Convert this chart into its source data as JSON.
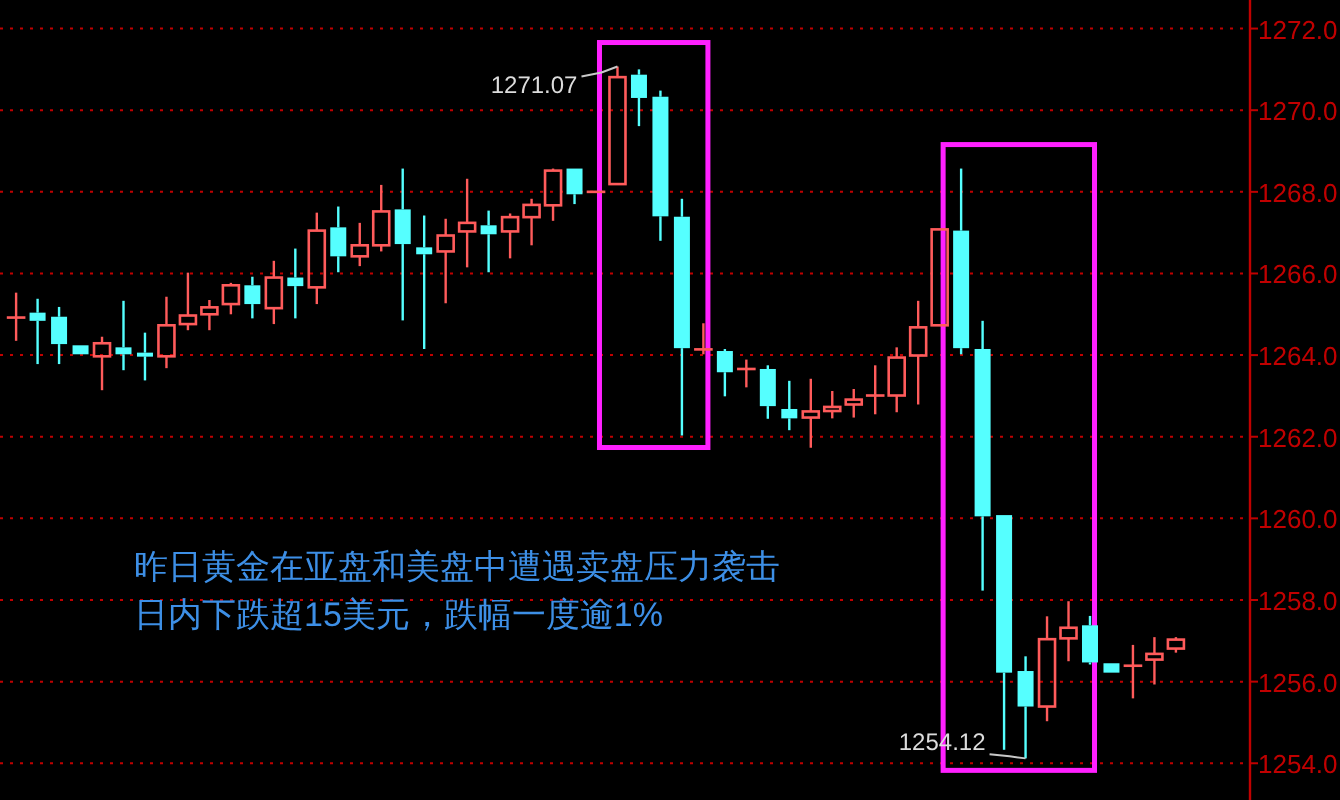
{
  "chart_data": {
    "type": "candlestick",
    "categories": [
      null,
      null,
      null,
      null,
      null,
      null,
      null,
      null,
      null,
      null,
      null,
      null,
      null,
      null,
      null,
      null,
      null,
      null,
      null,
      null,
      null,
      null,
      null,
      null,
      null,
      null,
      null,
      null,
      null,
      null,
      null,
      null,
      null,
      null,
      null,
      null,
      null,
      null,
      null,
      null,
      null,
      null,
      null,
      null,
      null,
      null,
      null,
      null,
      null,
      null,
      null,
      null,
      null,
      null,
      null
    ],
    "ohlc": [
      [
        1264.92,
        1265.53,
        1264.35,
        1264.92
      ],
      [
        1265.04,
        1265.38,
        1263.78,
        1264.84
      ],
      [
        1264.94,
        1265.18,
        1263.78,
        1264.27
      ],
      [
        1264.24,
        1264.24,
        1264.02,
        1264.02
      ],
      [
        1263.97,
        1264.45,
        1263.14,
        1264.29
      ],
      [
        1264.19,
        1265.33,
        1263.63,
        1264.02
      ],
      [
        1264.06,
        1264.55,
        1263.38,
        1263.97
      ],
      [
        1263.97,
        1265.43,
        1263.68,
        1264.73
      ],
      [
        1264.76,
        1266.02,
        1264.61,
        1264.97
      ],
      [
        1265.0,
        1265.35,
        1264.61,
        1265.17
      ],
      [
        1265.25,
        1265.77,
        1265.0,
        1265.71
      ],
      [
        1265.71,
        1265.92,
        1264.9,
        1265.25
      ],
      [
        1265.15,
        1266.31,
        1264.76,
        1265.9
      ],
      [
        1265.9,
        1266.61,
        1264.9,
        1265.69
      ],
      [
        1265.66,
        1267.49,
        1265.25,
        1267.05
      ],
      [
        1267.13,
        1267.64,
        1266.03,
        1266.42
      ],
      [
        1266.42,
        1267.24,
        1266.18,
        1266.69
      ],
      [
        1266.69,
        1268.17,
        1266.54,
        1267.52
      ],
      [
        1267.57,
        1268.57,
        1264.85,
        1266.72
      ],
      [
        1266.64,
        1267.42,
        1264.15,
        1266.47
      ],
      [
        1266.54,
        1267.34,
        1265.27,
        1266.93
      ],
      [
        1267.03,
        1268.32,
        1266.15,
        1267.24
      ],
      [
        1267.18,
        1267.54,
        1266.03,
        1266.96
      ],
      [
        1267.03,
        1267.47,
        1266.37,
        1267.38
      ],
      [
        1267.38,
        1267.83,
        1266.69,
        1267.68
      ],
      [
        1267.67,
        1268.57,
        1267.29,
        1268.52
      ],
      [
        1268.57,
        1268.57,
        1267.7,
        1267.94
      ],
      [
        1268.0,
        1268.0,
        1268.0,
        1268.0
      ],
      [
        1268.19,
        1271.07,
        1268.19,
        1270.81
      ],
      [
        1270.87,
        1271.0,
        1269.61,
        1270.3
      ],
      [
        1270.33,
        1270.48,
        1266.8,
        1267.4
      ],
      [
        1267.39,
        1267.83,
        1262.03,
        1264.17
      ],
      [
        1264.14,
        1264.78,
        1264.02,
        1264.14
      ],
      [
        1264.1,
        1264.15,
        1262.99,
        1263.58
      ],
      [
        1263.66,
        1263.89,
        1263.21,
        1263.66
      ],
      [
        1263.66,
        1263.75,
        1262.44,
        1262.75
      ],
      [
        1262.68,
        1263.37,
        1262.16,
        1262.45
      ],
      [
        1262.47,
        1263.42,
        1261.73,
        1262.62
      ],
      [
        1262.63,
        1263.12,
        1262.45,
        1262.73
      ],
      [
        1262.79,
        1263.17,
        1262.47,
        1262.91
      ],
      [
        1263.01,
        1263.75,
        1262.55,
        1263.01
      ],
      [
        1263.01,
        1264.19,
        1262.6,
        1263.94
      ],
      [
        1263.99,
        1265.33,
        1262.79,
        1264.68
      ],
      [
        1264.73,
        1267.08,
        1264.73,
        1267.08
      ],
      [
        1267.05,
        1268.57,
        1264.02,
        1264.17
      ],
      [
        1264.15,
        1264.84,
        1258.23,
        1260.05
      ],
      [
        1260.08,
        1260.08,
        1254.33,
        1256.22
      ],
      [
        1256.26,
        1256.62,
        1254.12,
        1255.39
      ],
      [
        1255.39,
        1257.6,
        1255.03,
        1257.04
      ],
      [
        1257.06,
        1257.97,
        1256.5,
        1257.32
      ],
      [
        1257.38,
        1257.61,
        1256.42,
        1256.47
      ],
      [
        1256.45,
        1256.45,
        1256.22,
        1256.22
      ],
      [
        1256.39,
        1256.9,
        1255.59,
        1256.39
      ],
      [
        1256.54,
        1257.09,
        1255.93,
        1256.68
      ],
      [
        1256.81,
        1257.09,
        1256.71,
        1257.03
      ]
    ],
    "colors": [
      "#ff5b5b",
      "#55ffff",
      "#55ffff",
      "#55ffff",
      "#ff5b5b",
      "#55ffff",
      "#55ffff",
      "#ff5b5b",
      "#ff5b5b",
      "#ff5b5b",
      "#ff5b5b",
      "#55ffff",
      "#ff5b5b",
      "#55ffff",
      "#ff5b5b",
      "#55ffff",
      "#ff5b5b",
      "#ff5b5b",
      "#55ffff",
      "#55ffff",
      "#ff5b5b",
      "#ff5b5b",
      "#55ffff",
      "#ff5b5b",
      "#ff5b5b",
      "#ff5b5b",
      "#55ffff",
      "#ff5b5b",
      "#ff5b5b",
      "#55ffff",
      "#55ffff",
      "#55ffff",
      "#ff5b5b",
      "#55ffff",
      "#ff5b5b",
      "#55ffff",
      "#55ffff",
      "#ff5b5b",
      "#ff5b5b",
      "#ff5b5b",
      "#ff5b5b",
      "#ff5b5b",
      "#ff5b5b",
      "#ff5b5b",
      "#55ffff",
      "#55ffff",
      "#55ffff",
      "#55ffff",
      "#ff5b5b",
      "#ff5b5b",
      "#55ffff",
      "#55ffff",
      "#ff5b5b",
      "#ff5b5b",
      "#ff5b5b"
    ],
    "ylim": [
      1253.1,
      1272.7
    ],
    "yticks": [
      {
        "value": 1254,
        "label": "1254.0"
      },
      {
        "value": 1256,
        "label": "1256.0"
      },
      {
        "value": 1258,
        "label": "1258.0"
      },
      {
        "value": 1260,
        "label": "1260.0"
      },
      {
        "value": 1262,
        "label": "1262.0"
      },
      {
        "value": 1264,
        "label": "1264.0"
      },
      {
        "value": 1266,
        "label": "1266.0"
      },
      {
        "value": 1268,
        "label": "1268.0"
      },
      {
        "value": 1270,
        "label": "1270.0"
      },
      {
        "value": 1272,
        "label": "1272.0"
      }
    ],
    "grid": "y",
    "tick_labels": "y",
    "annotations": [
      "1271.07",
      "1254.12",
      "昨日黄金在亚盘和美盘中遭遇卖盘压力袭击",
      "日内下跌超15美元，跌幅一度逾1%"
    ]
  }
}
